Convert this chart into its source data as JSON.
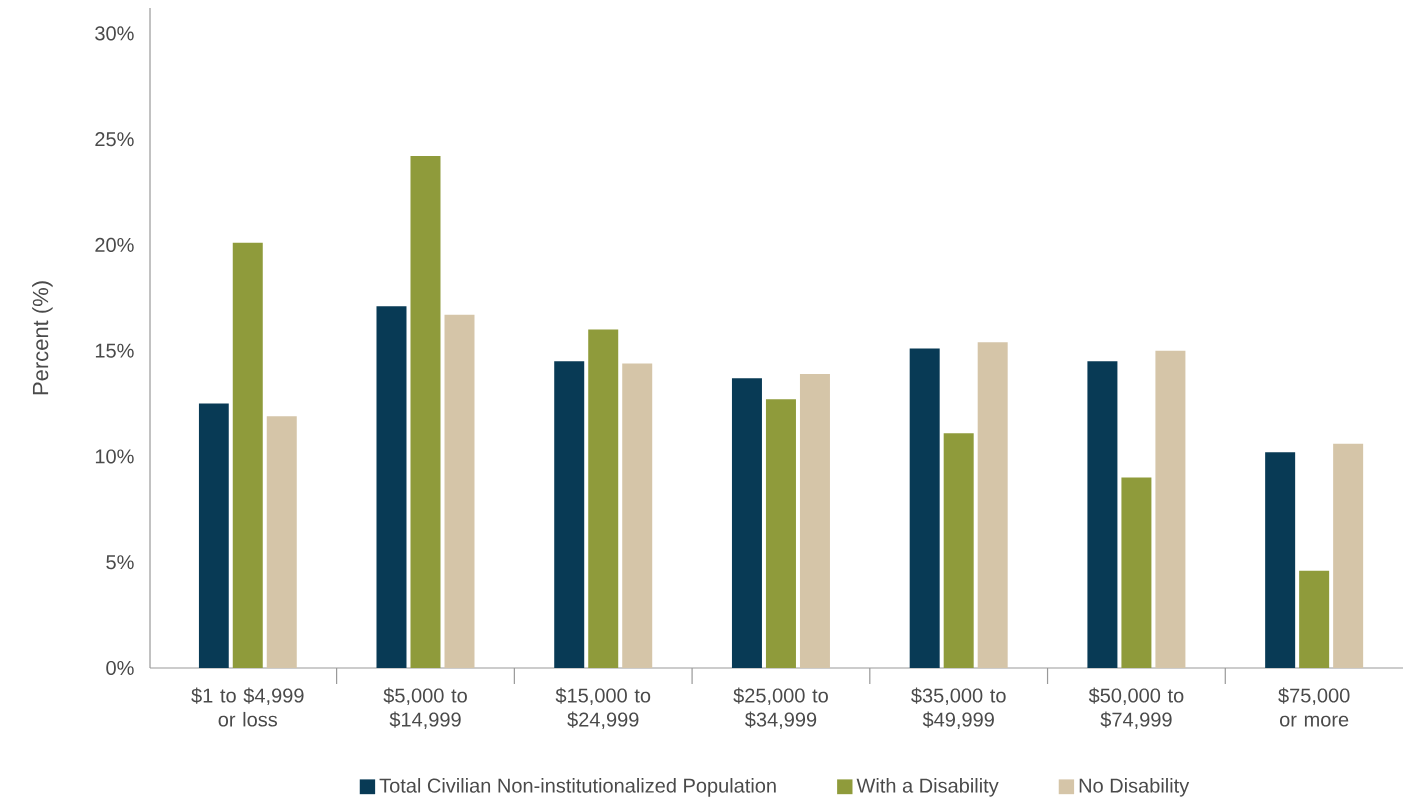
{
  "chart_data": {
    "type": "bar",
    "ylabel": "Percent (%)",
    "categories": [
      "$1 to $4,999 or loss",
      "$5,000 to $14,999",
      "$15,000 to $24,999",
      "$25,000 to $34,999",
      "$35,000 to $49,999",
      "$50,000 to $74,999",
      "$75,000 or more"
    ],
    "series": [
      {
        "name": "Total Civilian Non-institutionalized Population",
        "color": "#083a55",
        "values": [
          12.5,
          17.1,
          14.5,
          13.7,
          15.1,
          14.5,
          10.2
        ]
      },
      {
        "name": "With a Disability",
        "color": "#8f9b3b",
        "values": [
          20.1,
          24.2,
          16.0,
          12.7,
          11.1,
          9.0,
          4.6
        ]
      },
      {
        "name": "No Disability",
        "color": "#d5c5a8",
        "values": [
          11.9,
          16.7,
          14.4,
          13.9,
          15.4,
          15.0,
          10.6
        ]
      }
    ],
    "ylim": [
      0,
      31.2
    ],
    "yticks": [
      {
        "value": 0,
        "label": "0%"
      },
      {
        "value": 5,
        "label": "5%"
      },
      {
        "value": 10,
        "label": "10%"
      },
      {
        "value": 15,
        "label": "15%"
      },
      {
        "value": 20,
        "label": "20%"
      },
      {
        "value": 25,
        "label": "25%"
      },
      {
        "value": 30,
        "label": "30%"
      }
    ],
    "grid": false,
    "legend": "bottom"
  }
}
